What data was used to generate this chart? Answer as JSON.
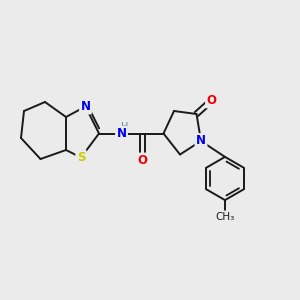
{
  "bg_color": "#ebebeb",
  "bond_color": "#1a1a1a",
  "atom_colors": {
    "N": "#0000ee",
    "O": "#ee0000",
    "S": "#cccc00",
    "C": "#1a1a1a",
    "H_label": "#4a8a8a"
  },
  "font_size_atom": 8.5,
  "line_width": 1.4,
  "xlim": [
    0,
    10
  ],
  "ylim": [
    0,
    10
  ]
}
